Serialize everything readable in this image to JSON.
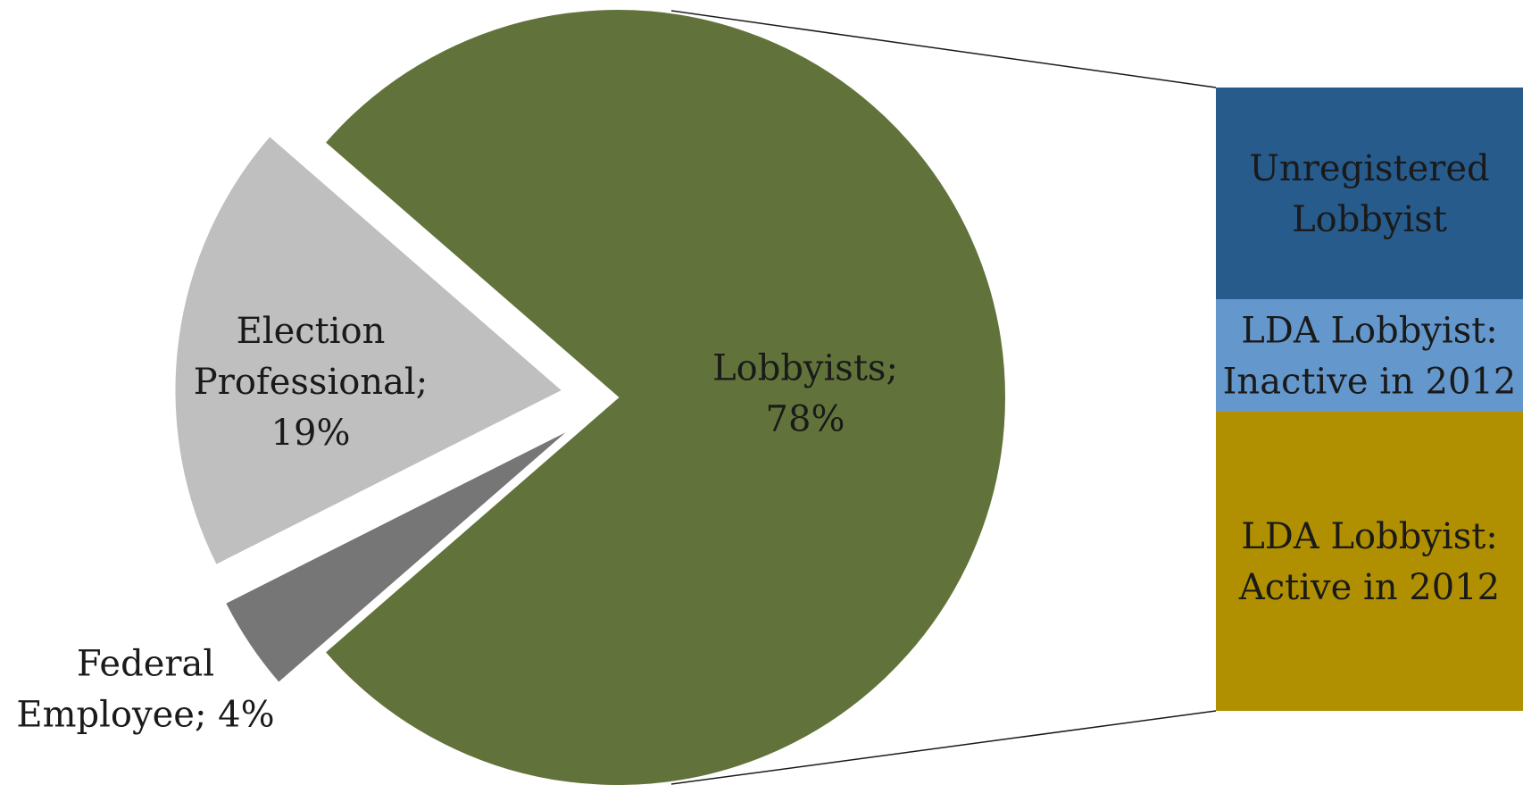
{
  "chart_data": {
    "type": "pie",
    "title": "",
    "slices": [
      {
        "label_lines": [
          "Lobbyists;",
          "78%"
        ],
        "value": 78,
        "color": "#61733a",
        "exploded": false
      },
      {
        "label_lines": [
          "Election",
          "Professional;",
          "19%"
        ],
        "value": 19,
        "color": "#bfbfbf",
        "exploded": true
      },
      {
        "label_lines": [
          "Federal",
          "Employee; 4%"
        ],
        "value": 4,
        "color": "#767676",
        "exploded": true
      }
    ],
    "breakdown_of": "Lobbyists; 78%",
    "breakdown": [
      {
        "label_lines": [
          "Unregistered",
          "Lobbyist"
        ],
        "share": 0.34,
        "color": "#275b8c"
      },
      {
        "label_lines": [
          "LDA Lobbyist:",
          "Inactive in 2012"
        ],
        "share": 0.18,
        "color": "#6497cb"
      },
      {
        "label_lines": [
          "LDA Lobbyist:",
          "Active in 2012"
        ],
        "share": 0.48,
        "color": "#b09000"
      }
    ]
  }
}
